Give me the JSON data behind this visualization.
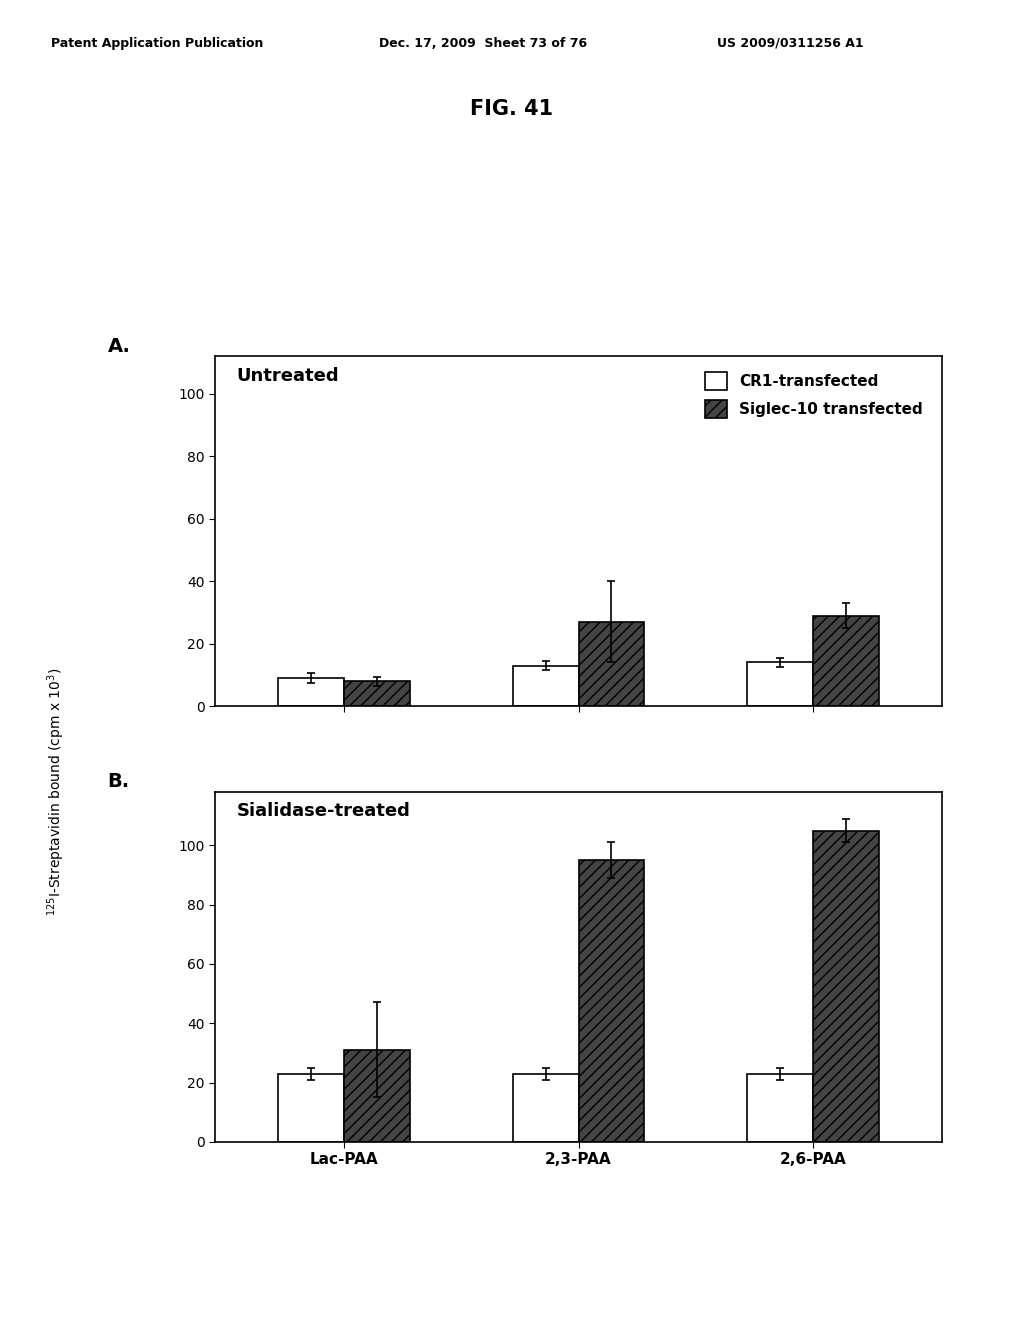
{
  "header_left": "Patent Application Publication",
  "header_mid": "Dec. 17, 2009  Sheet 73 of 76",
  "header_right": "US 2009/0311256 A1",
  "fig_title": "FIG. 41",
  "panel_A_label": "A.",
  "panel_B_label": "B.",
  "panel_A_title": "Untreated",
  "panel_B_title": "Sialidase-treated",
  "legend_cr1": "CR1-transfected",
  "legend_siglec": "Siglec-10 transfected",
  "x_labels": [
    "Lac-PAA",
    "2,3-PAA",
    "2,6-PAA"
  ],
  "panel_A": {
    "cr1_values": [
      9,
      13,
      14
    ],
    "cr1_errors": [
      1.5,
      1.5,
      1.5
    ],
    "siglec_values": [
      8,
      27,
      29
    ],
    "siglec_errors": [
      1.5,
      13,
      4
    ],
    "ylim": [
      0,
      112
    ],
    "yticks": [
      0,
      20,
      40,
      60,
      80,
      100
    ]
  },
  "panel_B": {
    "cr1_values": [
      23,
      23,
      23
    ],
    "cr1_errors": [
      2,
      2,
      2
    ],
    "siglec_values": [
      31,
      95,
      105
    ],
    "siglec_errors": [
      16,
      6,
      4
    ],
    "ylim": [
      0,
      118
    ],
    "yticks": [
      0,
      20,
      40,
      60,
      80,
      100
    ]
  },
  "bar_width": 0.28,
  "cr1_color": "white",
  "siglec_color": "#444444",
  "edge_color": "black",
  "background_color": "white",
  "fontsize_header": 9,
  "fontsize_panel_title": 13,
  "fontsize_label": 10,
  "fontsize_tick": 10,
  "fontsize_legend": 11,
  "fontsize_panel_letter": 14,
  "fontsize_fig_title": 15
}
